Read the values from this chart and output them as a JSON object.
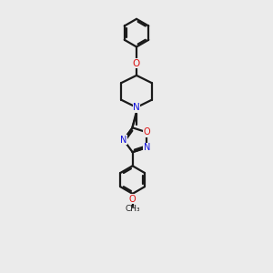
{
  "background_color": "#ebebeb",
  "bond_color": "#1a1a1a",
  "N_color": "#1010dd",
  "O_color": "#dd1010",
  "line_width": 1.6,
  "figsize": [
    3.0,
    3.0
  ],
  "dpi": 100,
  "xlim": [
    3.2,
    6.8
  ],
  "ylim": [
    0.5,
    15.5
  ]
}
